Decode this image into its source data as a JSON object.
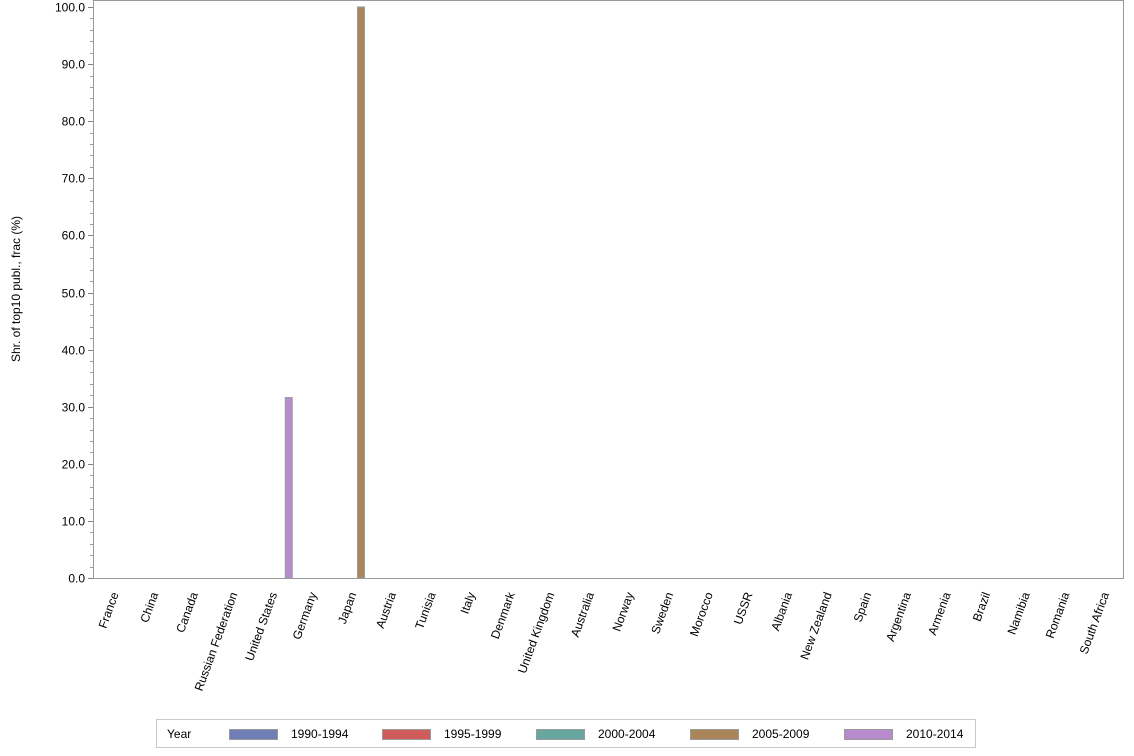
{
  "chart_data": {
    "type": "bar",
    "title": "",
    "xlabel": "",
    "ylabel": "Shr. of top10 publ., frac (%)",
    "ylim": [
      0,
      100
    ],
    "yticks": [
      "0.0",
      "10.0",
      "20.0",
      "30.0",
      "40.0",
      "50.0",
      "60.0",
      "70.0",
      "80.0",
      "90.0",
      "100.0"
    ],
    "grid": false,
    "legend_position": "bottom",
    "legend_title": "Year",
    "categories": [
      "France",
      "China",
      "Canada",
      "Russian Federation",
      "United States",
      "Germany",
      "Japan",
      "Austria",
      "Tunisia",
      "Italy",
      "Denmark",
      "United Kingdom",
      "Australia",
      "Norway",
      "Sweden",
      "Morocco",
      "USSR",
      "Albania",
      "New Zealand",
      "Spain",
      "Argentina",
      "Armenia",
      "Brazil",
      "Namibia",
      "Romania",
      "South Africa"
    ],
    "series": [
      {
        "name": "1990-1994",
        "color": "#6f7eb5",
        "values": [
          0,
          0,
          0,
          0,
          0,
          0,
          0,
          0,
          0,
          0,
          0,
          0,
          0,
          0,
          0,
          0,
          0,
          0,
          0,
          0,
          0,
          0,
          0,
          0,
          0,
          0
        ]
      },
      {
        "name": "1995-1999",
        "color": "#d05b5b",
        "values": [
          0,
          0,
          0,
          0,
          0,
          0,
          0,
          0,
          0,
          0,
          0,
          0,
          0,
          0,
          0,
          0,
          0,
          0,
          0,
          0,
          0,
          0,
          0,
          0,
          0,
          0
        ]
      },
      {
        "name": "2000-2004",
        "color": "#66a8a0",
        "values": [
          0,
          0,
          0,
          0,
          0,
          0,
          0,
          0,
          0,
          0,
          0,
          0,
          0,
          0,
          0,
          0,
          0,
          0,
          0,
          0,
          0,
          0,
          0,
          0,
          0,
          0
        ]
      },
      {
        "name": "2005-2009",
        "color": "#a98559",
        "values": [
          0,
          0,
          0,
          0,
          0,
          0,
          100.0,
          0,
          0,
          0,
          0,
          0,
          0,
          0,
          0,
          0,
          0,
          0,
          0,
          0,
          0,
          0,
          0,
          0,
          0,
          0
        ]
      },
      {
        "name": "2010-2014",
        "color": "#b88ccc",
        "values": [
          0,
          0,
          0,
          0,
          31.6,
          0,
          0,
          0,
          0,
          0,
          0,
          0,
          0,
          0,
          0,
          0,
          0,
          0,
          0,
          0,
          0,
          0,
          0,
          0,
          0,
          0
        ]
      }
    ]
  }
}
